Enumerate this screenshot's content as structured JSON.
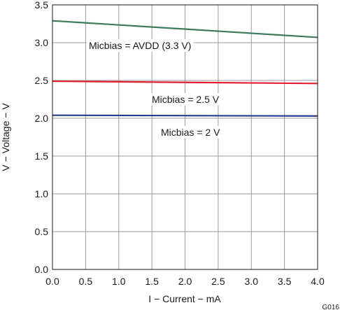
{
  "chart_data": {
    "type": "line",
    "title": "",
    "xlabel": "I − Current − mA",
    "ylabel": "V − Voltage − V",
    "xlim": [
      0,
      4.0
    ],
    "ylim": [
      0,
      3.5
    ],
    "grid": true,
    "x_ticks": [
      "0.0",
      "0.5",
      "1.0",
      "1.5",
      "2.0",
      "2.5",
      "3.0",
      "3.5",
      "4.0"
    ],
    "y_ticks": [
      "0.0",
      "0.5",
      "1.0",
      "1.5",
      "2.0",
      "2.5",
      "3.0",
      "3.5"
    ],
    "series": [
      {
        "name": "Micbias = AVDD (3.3 V)",
        "color": "#3d7a5c",
        "x": [
          0,
          4.0
        ],
        "y": [
          3.29,
          3.07
        ]
      },
      {
        "name": "Micbias = 2.5 V",
        "color": "#e02030",
        "x": [
          0,
          4.0
        ],
        "y": [
          2.49,
          2.46
        ]
      },
      {
        "name": "Micbias = 2 V",
        "color": "#2a3a8c",
        "x": [
          0,
          4.0
        ],
        "y": [
          2.04,
          2.03
        ]
      }
    ],
    "annotations": [
      "Micbias = AVDD (3.3 V)",
      "Micbias = 2.5 V",
      "Micbias = 2 V"
    ],
    "figure_code": "G016"
  }
}
